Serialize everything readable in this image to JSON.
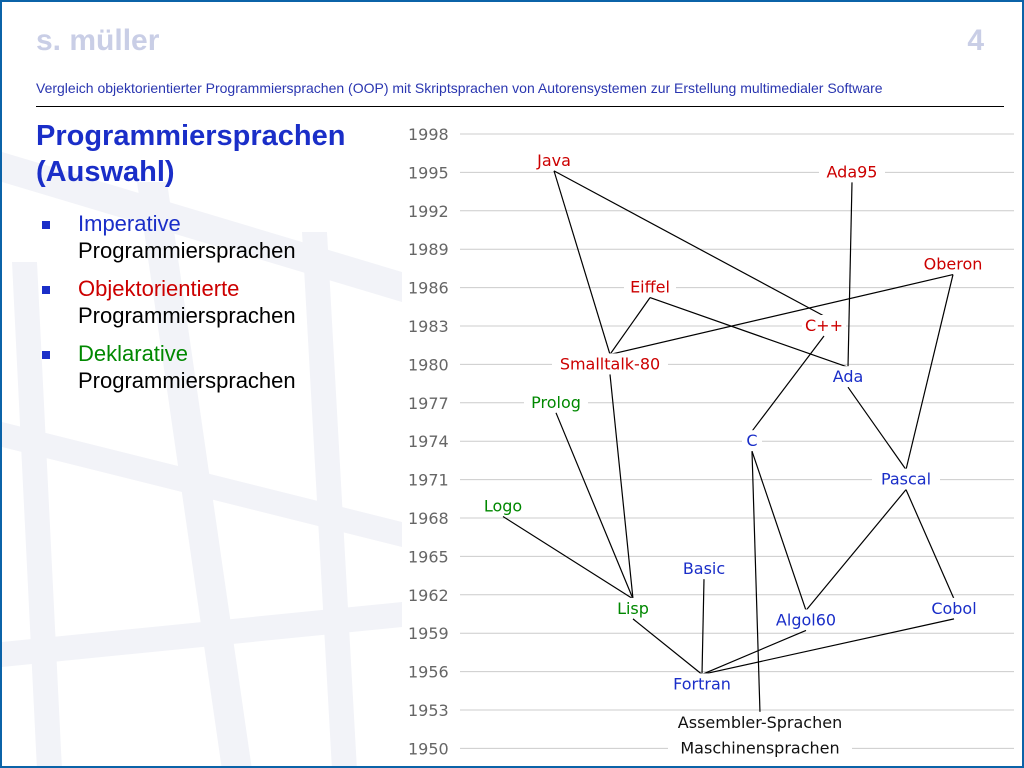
{
  "header": {
    "author": "s. müller",
    "page_number": "4",
    "subtitle": "Vergleich objektorientierter Programmiersprachen (OOP) mit Skriptsprachen von Autorensystemen zur Erstellung multimedialer Software"
  },
  "title": {
    "line1": "Programmiersprachen",
    "line2": "(Auswahl)"
  },
  "bullets": [
    {
      "colored": "Imperative",
      "rest": "Programmiersprachen",
      "color": "#1a2ec8"
    },
    {
      "colored": "Objektorientierte",
      "rest": "Programmiersprachen",
      "color": "#cc0000"
    },
    {
      "colored": "Deklarative",
      "rest": "Programmiersprachen",
      "color": "#008800"
    }
  ],
  "colors": {
    "imperative": "#1a2ec8",
    "object_oriented": "#cc0000",
    "declarative": "#008800",
    "base": "#111111"
  },
  "timeline": {
    "years": [
      "1998",
      "1995",
      "1992",
      "1989",
      "1986",
      "1983",
      "1980",
      "1977",
      "1974",
      "1971",
      "1968",
      "1965",
      "1962",
      "1959",
      "1956",
      "1953",
      "1950"
    ],
    "languages": [
      {
        "id": "java",
        "label": "Java",
        "year": 1995.9,
        "category": "object_oriented"
      },
      {
        "id": "ada95",
        "label": "Ada95",
        "year": 1995,
        "category": "object_oriented"
      },
      {
        "id": "oberon",
        "label": "Oberon",
        "year": 1987.8,
        "category": "object_oriented"
      },
      {
        "id": "eiffel",
        "label": "Eiffel",
        "year": 1986,
        "category": "object_oriented"
      },
      {
        "id": "cpp",
        "label": "C++",
        "year": 1983,
        "category": "object_oriented"
      },
      {
        "id": "smalltalk",
        "label": "Smalltalk-80",
        "year": 1980,
        "category": "object_oriented"
      },
      {
        "id": "ada",
        "label": "Ada",
        "year": 1979,
        "category": "imperative"
      },
      {
        "id": "prolog",
        "label": "Prolog",
        "year": 1977,
        "category": "declarative"
      },
      {
        "id": "c",
        "label": "C",
        "year": 1974,
        "category": "imperative"
      },
      {
        "id": "pascal",
        "label": "Pascal",
        "year": 1971,
        "category": "imperative"
      },
      {
        "id": "logo",
        "label": "Logo",
        "year": 1968.9,
        "category": "declarative"
      },
      {
        "id": "basic",
        "label": "Basic",
        "year": 1964,
        "category": "imperative"
      },
      {
        "id": "lisp",
        "label": "Lisp",
        "year": 1960.9,
        "category": "declarative"
      },
      {
        "id": "cobol",
        "label": "Cobol",
        "year": 1960.9,
        "category": "imperative"
      },
      {
        "id": "algol60",
        "label": "Algol60",
        "year": 1960,
        "category": "imperative"
      },
      {
        "id": "fortran",
        "label": "Fortran",
        "year": 1955,
        "category": "imperative"
      },
      {
        "id": "assembler",
        "label": "Assembler-Sprachen",
        "year": 1952,
        "category": "base"
      },
      {
        "id": "maschinen",
        "label": "Maschinensprachen",
        "year": 1950,
        "category": "base"
      }
    ],
    "edges": [
      [
        "java",
        "smalltalk"
      ],
      [
        "java",
        "cpp"
      ],
      [
        "ada95",
        "ada"
      ],
      [
        "oberon",
        "smalltalk"
      ],
      [
        "eiffel",
        "smalltalk"
      ],
      [
        "eiffel",
        "ada"
      ],
      [
        "cpp",
        "c"
      ],
      [
        "smalltalk",
        "lisp"
      ],
      [
        "ada",
        "pascal"
      ],
      [
        "oberon",
        "pascal"
      ],
      [
        "prolog",
        "lisp"
      ],
      [
        "logo",
        "lisp"
      ],
      [
        "c",
        "algol60"
      ],
      [
        "c",
        "assembler"
      ],
      [
        "pascal",
        "algol60"
      ],
      [
        "pascal",
        "cobol"
      ],
      [
        "basic",
        "fortran"
      ],
      [
        "lisp",
        "fortran"
      ],
      [
        "algol60",
        "fortran"
      ],
      [
        "cobol",
        "fortran"
      ]
    ]
  }
}
